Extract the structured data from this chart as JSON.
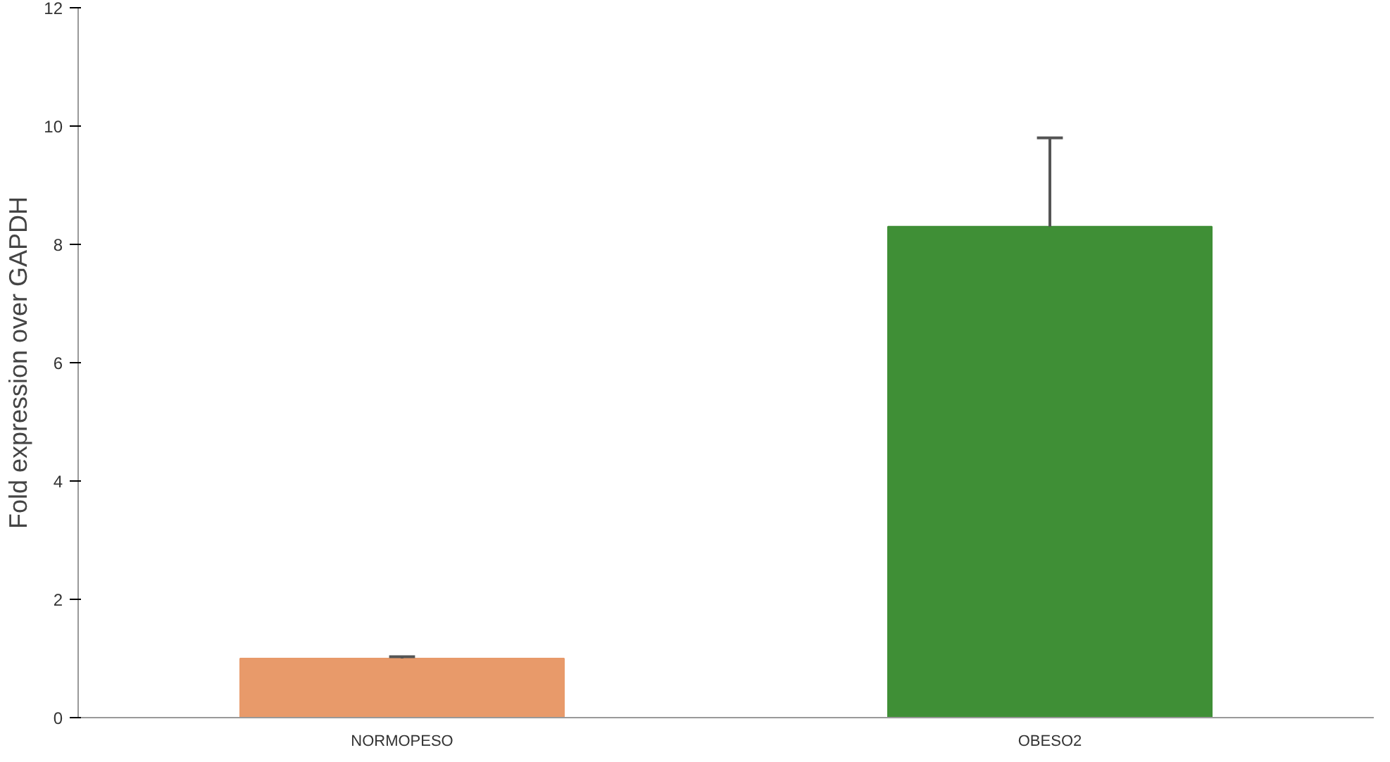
{
  "chart_data": {
    "type": "bar",
    "ylabel": "Fold expression over GAPDH",
    "categories": [
      "NORMOPESO",
      "OBESO2"
    ],
    "values": [
      1.0,
      8.3
    ],
    "colors": [
      "#e89a6a",
      "#3f8f36"
    ],
    "errors": [
      [
        1.0,
        1.03
      ],
      [
        8.3,
        9.8
      ]
    ],
    "ylim": [
      0,
      12
    ],
    "yticks": [
      0,
      2,
      4,
      6,
      8,
      10,
      12
    ],
    "grid": false
  }
}
